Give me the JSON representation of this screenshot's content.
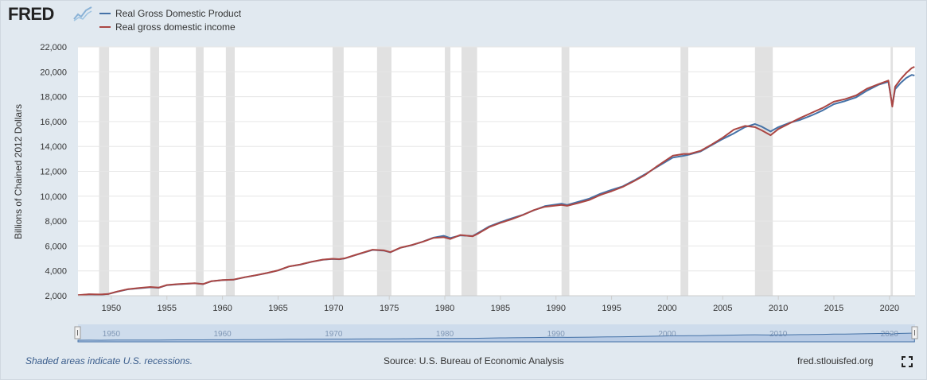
{
  "header": {
    "logo_text": "FRED",
    "logo_icon": "chart-line-icon"
  },
  "legend": [
    {
      "label": "Real Gross Domestic Product",
      "color": "#4572a7"
    },
    {
      "label": "Real gross domestic income",
      "color": "#aa4643"
    }
  ],
  "footer": {
    "recession_note": "Shaded areas indicate U.S. recessions.",
    "source": "Source: U.S. Bureau of Economic Analysis",
    "site": "fred.stlouisfed.org",
    "fullscreen_icon": "fullscreen-icon"
  },
  "colors": {
    "background": "#e1e9f0",
    "plot_background": "#ffffff",
    "recession_shade": "#e1e1e1",
    "navigator_fill": "#b8cbe5",
    "navigator_line": "#4572a7"
  },
  "chart_data": {
    "type": "line",
    "title": "",
    "xlabel": "",
    "ylabel": "Billions of Chained 2012 Dollars",
    "xlim": [
      1947.0,
      2022.3
    ],
    "ylim": [
      2000,
      22000
    ],
    "y_ticks": [
      2000,
      4000,
      6000,
      8000,
      10000,
      12000,
      14000,
      16000,
      18000,
      20000,
      22000
    ],
    "y_tick_labels": [
      "2,000",
      "4,000",
      "6,000",
      "8,000",
      "10,000",
      "12,000",
      "14,000",
      "16,000",
      "18,000",
      "20,000",
      "22,000"
    ],
    "x_ticks": [
      1950,
      1955,
      1960,
      1965,
      1970,
      1975,
      1980,
      1985,
      1990,
      1995,
      2000,
      2005,
      2010,
      2015,
      2020
    ],
    "x_tick_labels": [
      "1950",
      "1955",
      "1960",
      "1965",
      "1970",
      "1975",
      "1980",
      "1985",
      "1990",
      "1995",
      "2000",
      "2005",
      "2010",
      "2015",
      "2020"
    ],
    "navigator_tick_labels": [
      "1950",
      "1960",
      "1970",
      "1980",
      "1990",
      "2000",
      "2010",
      "2020"
    ],
    "grid": true,
    "legend_position": "top-left",
    "recessions": [
      [
        1948.9,
        1949.8
      ],
      [
        1953.5,
        1954.3
      ],
      [
        1957.6,
        1958.3
      ],
      [
        1960.3,
        1961.1
      ],
      [
        1969.9,
        1970.9
      ],
      [
        1973.9,
        1975.2
      ],
      [
        1980.0,
        1980.5
      ],
      [
        1981.5,
        1982.9
      ],
      [
        1990.5,
        1991.2
      ],
      [
        2001.2,
        2001.9
      ],
      [
        2007.9,
        2009.5
      ],
      [
        2020.1,
        2020.3
      ]
    ],
    "series": [
      {
        "name": "Real Gross Domestic Product",
        "x": [
          1947.0,
          1948.0,
          1949.0,
          1949.75,
          1950.5,
          1951.5,
          1952.5,
          1953.5,
          1954.25,
          1955.0,
          1956.0,
          1957.5,
          1958.25,
          1959.0,
          1960.0,
          1961.0,
          1962.0,
          1963.0,
          1964.0,
          1965.0,
          1966.0,
          1967.0,
          1968.0,
          1969.0,
          1969.9,
          1970.5,
          1971.0,
          1972.0,
          1973.5,
          1974.5,
          1975.1,
          1976.0,
          1977.0,
          1978.0,
          1979.0,
          1979.9,
          1980.5,
          1981.4,
          1982.5,
          1983.0,
          1984.0,
          1985.0,
          1986.0,
          1987.0,
          1988.0,
          1989.0,
          1990.5,
          1991.0,
          1992.0,
          1993.0,
          1994.0,
          1995.0,
          1996.0,
          1997.0,
          1998.0,
          1999.0,
          2000.5,
          2001.5,
          2002.0,
          2003.0,
          2004.0,
          2005.0,
          2006.0,
          2007.0,
          2007.9,
          2008.5,
          2009.3,
          2010.0,
          2011.0,
          2012.0,
          2013.0,
          2014.0,
          2015.0,
          2016.0,
          2017.0,
          2018.0,
          2019.0,
          2019.9,
          2020.25,
          2020.5,
          2021.0,
          2021.5,
          2022.0,
          2022.25
        ],
        "values": [
          2030,
          2110,
          2080,
          2140,
          2320,
          2520,
          2600,
          2680,
          2640,
          2850,
          2920,
          3000,
          2930,
          3160,
          3250,
          3290,
          3480,
          3640,
          3820,
          4030,
          4350,
          4500,
          4720,
          4890,
          4960,
          4930,
          5000,
          5280,
          5680,
          5630,
          5490,
          5850,
          6060,
          6340,
          6680,
          6820,
          6640,
          6850,
          6800,
          7050,
          7570,
          7920,
          8220,
          8500,
          8860,
          9200,
          9400,
          9300,
          9550,
          9810,
          10200,
          10510,
          10790,
          11250,
          11760,
          12300,
          13100,
          13250,
          13350,
          13600,
          14100,
          14600,
          15050,
          15550,
          15800,
          15600,
          15200,
          15550,
          15900,
          16150,
          16500,
          16900,
          17400,
          17650,
          17950,
          18500,
          18950,
          19200,
          17300,
          18600,
          19100,
          19500,
          19750,
          19700
        ]
      },
      {
        "name": "Real gross domestic income",
        "x": [
          1947.0,
          1948.0,
          1949.0,
          1949.75,
          1950.5,
          1951.5,
          1952.5,
          1953.5,
          1954.25,
          1955.0,
          1956.0,
          1957.5,
          1958.25,
          1959.0,
          1960.0,
          1961.0,
          1962.0,
          1963.0,
          1964.0,
          1965.0,
          1966.0,
          1967.0,
          1968.0,
          1969.0,
          1969.9,
          1970.5,
          1971.0,
          1972.0,
          1973.5,
          1974.5,
          1975.1,
          1976.0,
          1977.0,
          1978.0,
          1979.0,
          1979.9,
          1980.5,
          1981.4,
          1982.5,
          1983.0,
          1984.0,
          1985.0,
          1986.0,
          1987.0,
          1988.0,
          1989.0,
          1990.5,
          1991.0,
          1992.0,
          1993.0,
          1994.0,
          1995.0,
          1996.0,
          1997.0,
          1998.0,
          1999.0,
          2000.5,
          2001.5,
          2002.0,
          2003.0,
          2004.0,
          2005.0,
          2006.0,
          2007.0,
          2007.9,
          2008.5,
          2009.3,
          2010.0,
          2011.0,
          2012.0,
          2013.0,
          2014.0,
          2015.0,
          2016.0,
          2017.0,
          2018.0,
          2019.0,
          2019.9,
          2020.25,
          2020.5,
          2021.0,
          2021.5,
          2022.0,
          2022.25
        ],
        "values": [
          2050,
          2120,
          2100,
          2150,
          2330,
          2530,
          2620,
          2700,
          2650,
          2860,
          2930,
          3010,
          2940,
          3170,
          3260,
          3300,
          3490,
          3650,
          3830,
          4040,
          4360,
          4510,
          4730,
          4900,
          4970,
          4940,
          5010,
          5290,
          5700,
          5650,
          5500,
          5860,
          6070,
          6330,
          6650,
          6700,
          6560,
          6880,
          6780,
          7000,
          7520,
          7860,
          8150,
          8480,
          8880,
          9150,
          9300,
          9230,
          9450,
          9700,
          10100,
          10400,
          10750,
          11200,
          11700,
          12350,
          13250,
          13400,
          13400,
          13650,
          14150,
          14700,
          15350,
          15650,
          15550,
          15300,
          14900,
          15400,
          15850,
          16300,
          16700,
          17100,
          17600,
          17800,
          18100,
          18650,
          19000,
          19300,
          17200,
          18800,
          19400,
          19900,
          20300,
          20400
        ]
      }
    ]
  }
}
